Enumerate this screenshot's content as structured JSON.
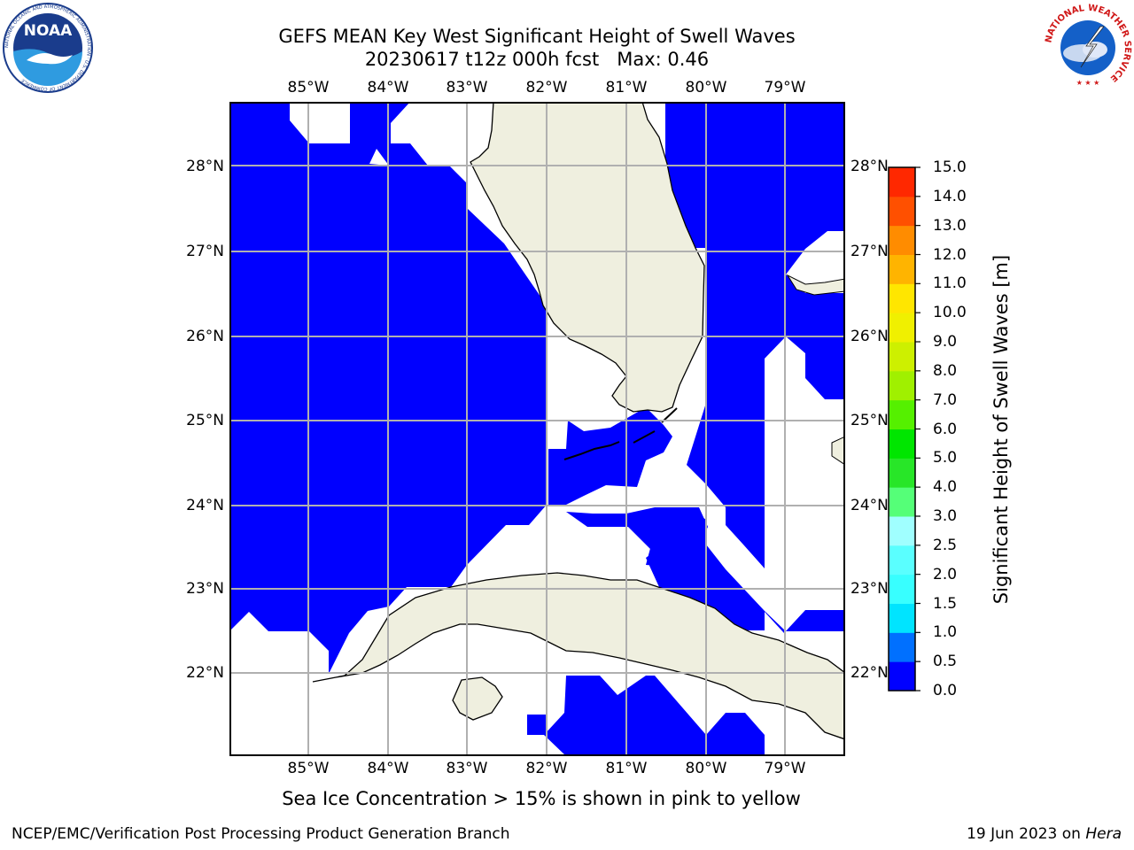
{
  "title": {
    "line1": "GEFS MEAN Key West Significant Height of Swell Waves",
    "line2": "20230617 t12z 000h fcst   Max: 0.46"
  },
  "map": {
    "lon_labels": [
      "85°W",
      "84°W",
      "83°W",
      "82°W",
      "81°W",
      "80°W",
      "79°W"
    ],
    "lat_labels": [
      "28°N",
      "27°N",
      "26°N",
      "25°N",
      "24°N",
      "23°N",
      "22°N"
    ],
    "colors": {
      "ocean_fill": "#0000ff",
      "land": "#efefdf",
      "grid": "#b0b0b0",
      "no_data": "#ffffff"
    }
  },
  "colorbar": {
    "title": "Significant Height of Swell Waves [m]",
    "ticks": [
      "0.0",
      "0.5",
      "1.0",
      "1.5",
      "2.0",
      "2.5",
      "3.0",
      "4.0",
      "5.0",
      "6.0",
      "7.0",
      "8.0",
      "9.0",
      "10.0",
      "11.0",
      "12.0",
      "13.0",
      "14.0",
      "15.0"
    ],
    "colors": [
      "#0000ff",
      "#0070ff",
      "#00e4ff",
      "#38ffff",
      "#5affff",
      "#a0ffff",
      "#55ff78",
      "#28e628",
      "#00e600",
      "#55f000",
      "#a0f000",
      "#cdf000",
      "#f0f000",
      "#ffe600",
      "#ffb400",
      "#ff8c00",
      "#ff5000",
      "#ff2800",
      "#ff0000"
    ]
  },
  "subtitle": "Sea Ice Concentration > 15% is shown in pink to yellow",
  "footer": {
    "left": "NCEP/EMC/Verification Post Processing Product Generation Branch",
    "right_prefix": "19 Jun 2023 on ",
    "right_host": "Hera"
  },
  "logos": {
    "noaa_text": "NOAA",
    "noaa_ring_text": "NATIONAL OCEANIC AND ATMOSPHERIC ADMINISTRATION · U.S. DEPARTMENT OF COMMERCE",
    "nws_ring_text": "NATIONAL WEATHER SERVICE"
  }
}
